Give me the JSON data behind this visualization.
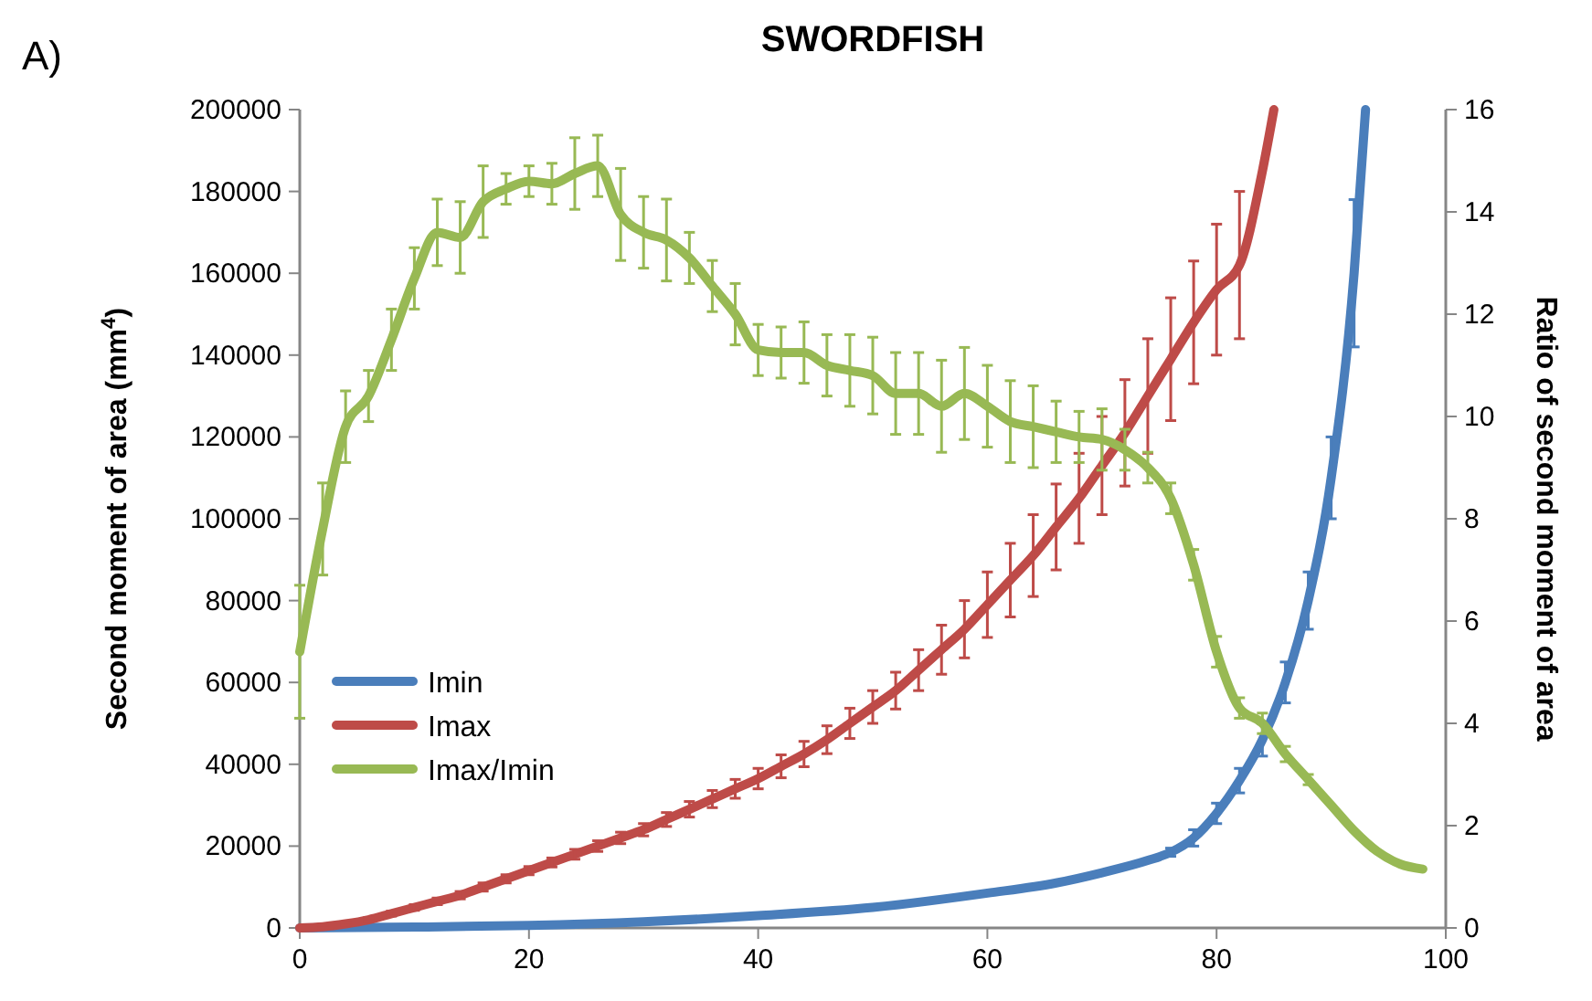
{
  "chart_data": {
    "type": "line",
    "title": "SWORDFISH",
    "annotations": [
      "A)"
    ],
    "ylabel": "Second moment of area (mm$^{4}$)",
    "y2label": "Ratio of second moment of area",
    "xlim": [
      0,
      100
    ],
    "xticks": [
      0,
      20,
      40,
      60,
      80,
      100
    ],
    "ylim": [
      0,
      200000
    ],
    "yticks": [
      0,
      20000,
      40000,
      60000,
      80000,
      100000,
      120000,
      140000,
      160000,
      180000,
      200000
    ],
    "y2lim": [
      0,
      16
    ],
    "y2ticks": [
      0,
      2,
      4,
      6,
      8,
      10,
      12,
      14,
      16
    ],
    "legend": "bottom left",
    "grid": false,
    "marker": "none",
    "line_style": "solid",
    "series": [
      {
        "name": "Imin",
        "color": "#4a7ebb",
        "x": [
          0,
          10,
          20,
          30,
          40,
          50,
          60,
          66,
          70,
          74,
          76,
          78,
          80,
          82,
          84,
          86,
          88,
          90,
          92,
          93
        ],
        "values": [
          0,
          200,
          600,
          1500,
          3000,
          5000,
          8500,
          11000,
          13500,
          16500,
          18500,
          22000,
          28000,
          36000,
          46000,
          60000,
          80000,
          110000,
          160000,
          200000
        ],
        "errors": [
          null,
          null,
          null,
          null,
          null,
          null,
          null,
          null,
          null,
          null,
          1000,
          2000,
          2500,
          3000,
          4000,
          5000,
          7000,
          10000,
          18000,
          null
        ]
      },
      {
        "name": "Imax",
        "color": "#be4b48",
        "x": [
          0,
          2,
          4,
          6,
          8,
          10,
          12,
          14,
          16,
          18,
          20,
          22,
          24,
          26,
          28,
          30,
          32,
          34,
          36,
          38,
          40,
          42,
          44,
          46,
          48,
          50,
          52,
          54,
          56,
          58,
          60,
          62,
          64,
          66,
          68,
          70,
          72,
          74,
          76,
          78,
          80,
          82,
          84,
          85
        ],
        "values": [
          0,
          300,
          1000,
          2000,
          3500,
          5000,
          6500,
          8000,
          10000,
          12000,
          14000,
          16000,
          18000,
          20000,
          22000,
          24000,
          26500,
          29000,
          31500,
          34000,
          36500,
          39500,
          42500,
          46000,
          50000,
          54000,
          58000,
          63000,
          68000,
          73000,
          79000,
          85000,
          91000,
          98000,
          105000,
          113000,
          121000,
          130000,
          139000,
          148000,
          156000,
          162000,
          185000,
          200000
        ],
        "errors": [
          null,
          300,
          400,
          500,
          600,
          700,
          800,
          900,
          1000,
          1000,
          1000,
          1100,
          1200,
          1300,
          1400,
          1500,
          1700,
          1900,
          2100,
          2300,
          2500,
          2800,
          3100,
          3400,
          3700,
          4000,
          4500,
          5000,
          6000,
          7000,
          8000,
          9000,
          10000,
          10500,
          11000,
          12000,
          13000,
          14000,
          15000,
          15000,
          16000,
          18000,
          null,
          null
        ]
      },
      {
        "name": "Imax/Imin",
        "color": "#98b954",
        "axis": "y2",
        "x": [
          0,
          2,
          4,
          6,
          8,
          10,
          12,
          14,
          16,
          18,
          20,
          22,
          24,
          26,
          28,
          30,
          32,
          34,
          36,
          38,
          40,
          42,
          44,
          46,
          48,
          50,
          52,
          54,
          56,
          58,
          60,
          62,
          64,
          66,
          68,
          70,
          72,
          74,
          76,
          78,
          80,
          82,
          84,
          86,
          88,
          90,
          92,
          94,
          96,
          98
        ],
        "values": [
          5.4,
          7.8,
          9.8,
          10.4,
          11.5,
          12.7,
          13.6,
          13.5,
          14.2,
          14.45,
          14.6,
          14.55,
          14.75,
          14.9,
          13.95,
          13.6,
          13.45,
          13.1,
          12.55,
          12.0,
          11.3,
          11.25,
          11.25,
          11.0,
          10.9,
          10.8,
          10.45,
          10.45,
          10.2,
          10.45,
          10.2,
          9.9,
          9.8,
          9.7,
          9.6,
          9.55,
          9.35,
          9.0,
          8.4,
          7.1,
          5.4,
          4.3,
          4.0,
          3.4,
          2.9,
          2.4,
          1.9,
          1.5,
          1.25,
          1.15
        ],
        "errors": [
          1.3,
          0.9,
          0.7,
          0.5,
          0.6,
          0.6,
          0.65,
          0.7,
          0.7,
          0.3,
          0.3,
          0.4,
          0.7,
          0.6,
          0.9,
          0.7,
          0.8,
          0.5,
          0.5,
          0.6,
          0.5,
          0.5,
          0.6,
          0.6,
          0.7,
          0.75,
          0.8,
          0.8,
          0.9,
          0.9,
          0.8,
          0.8,
          0.8,
          0.6,
          0.5,
          0.6,
          0.4,
          0.3,
          0.3,
          0.3,
          0.3,
          0.2,
          0.2,
          0.15,
          0.1,
          null,
          null,
          null,
          null,
          null
        ]
      }
    ]
  }
}
